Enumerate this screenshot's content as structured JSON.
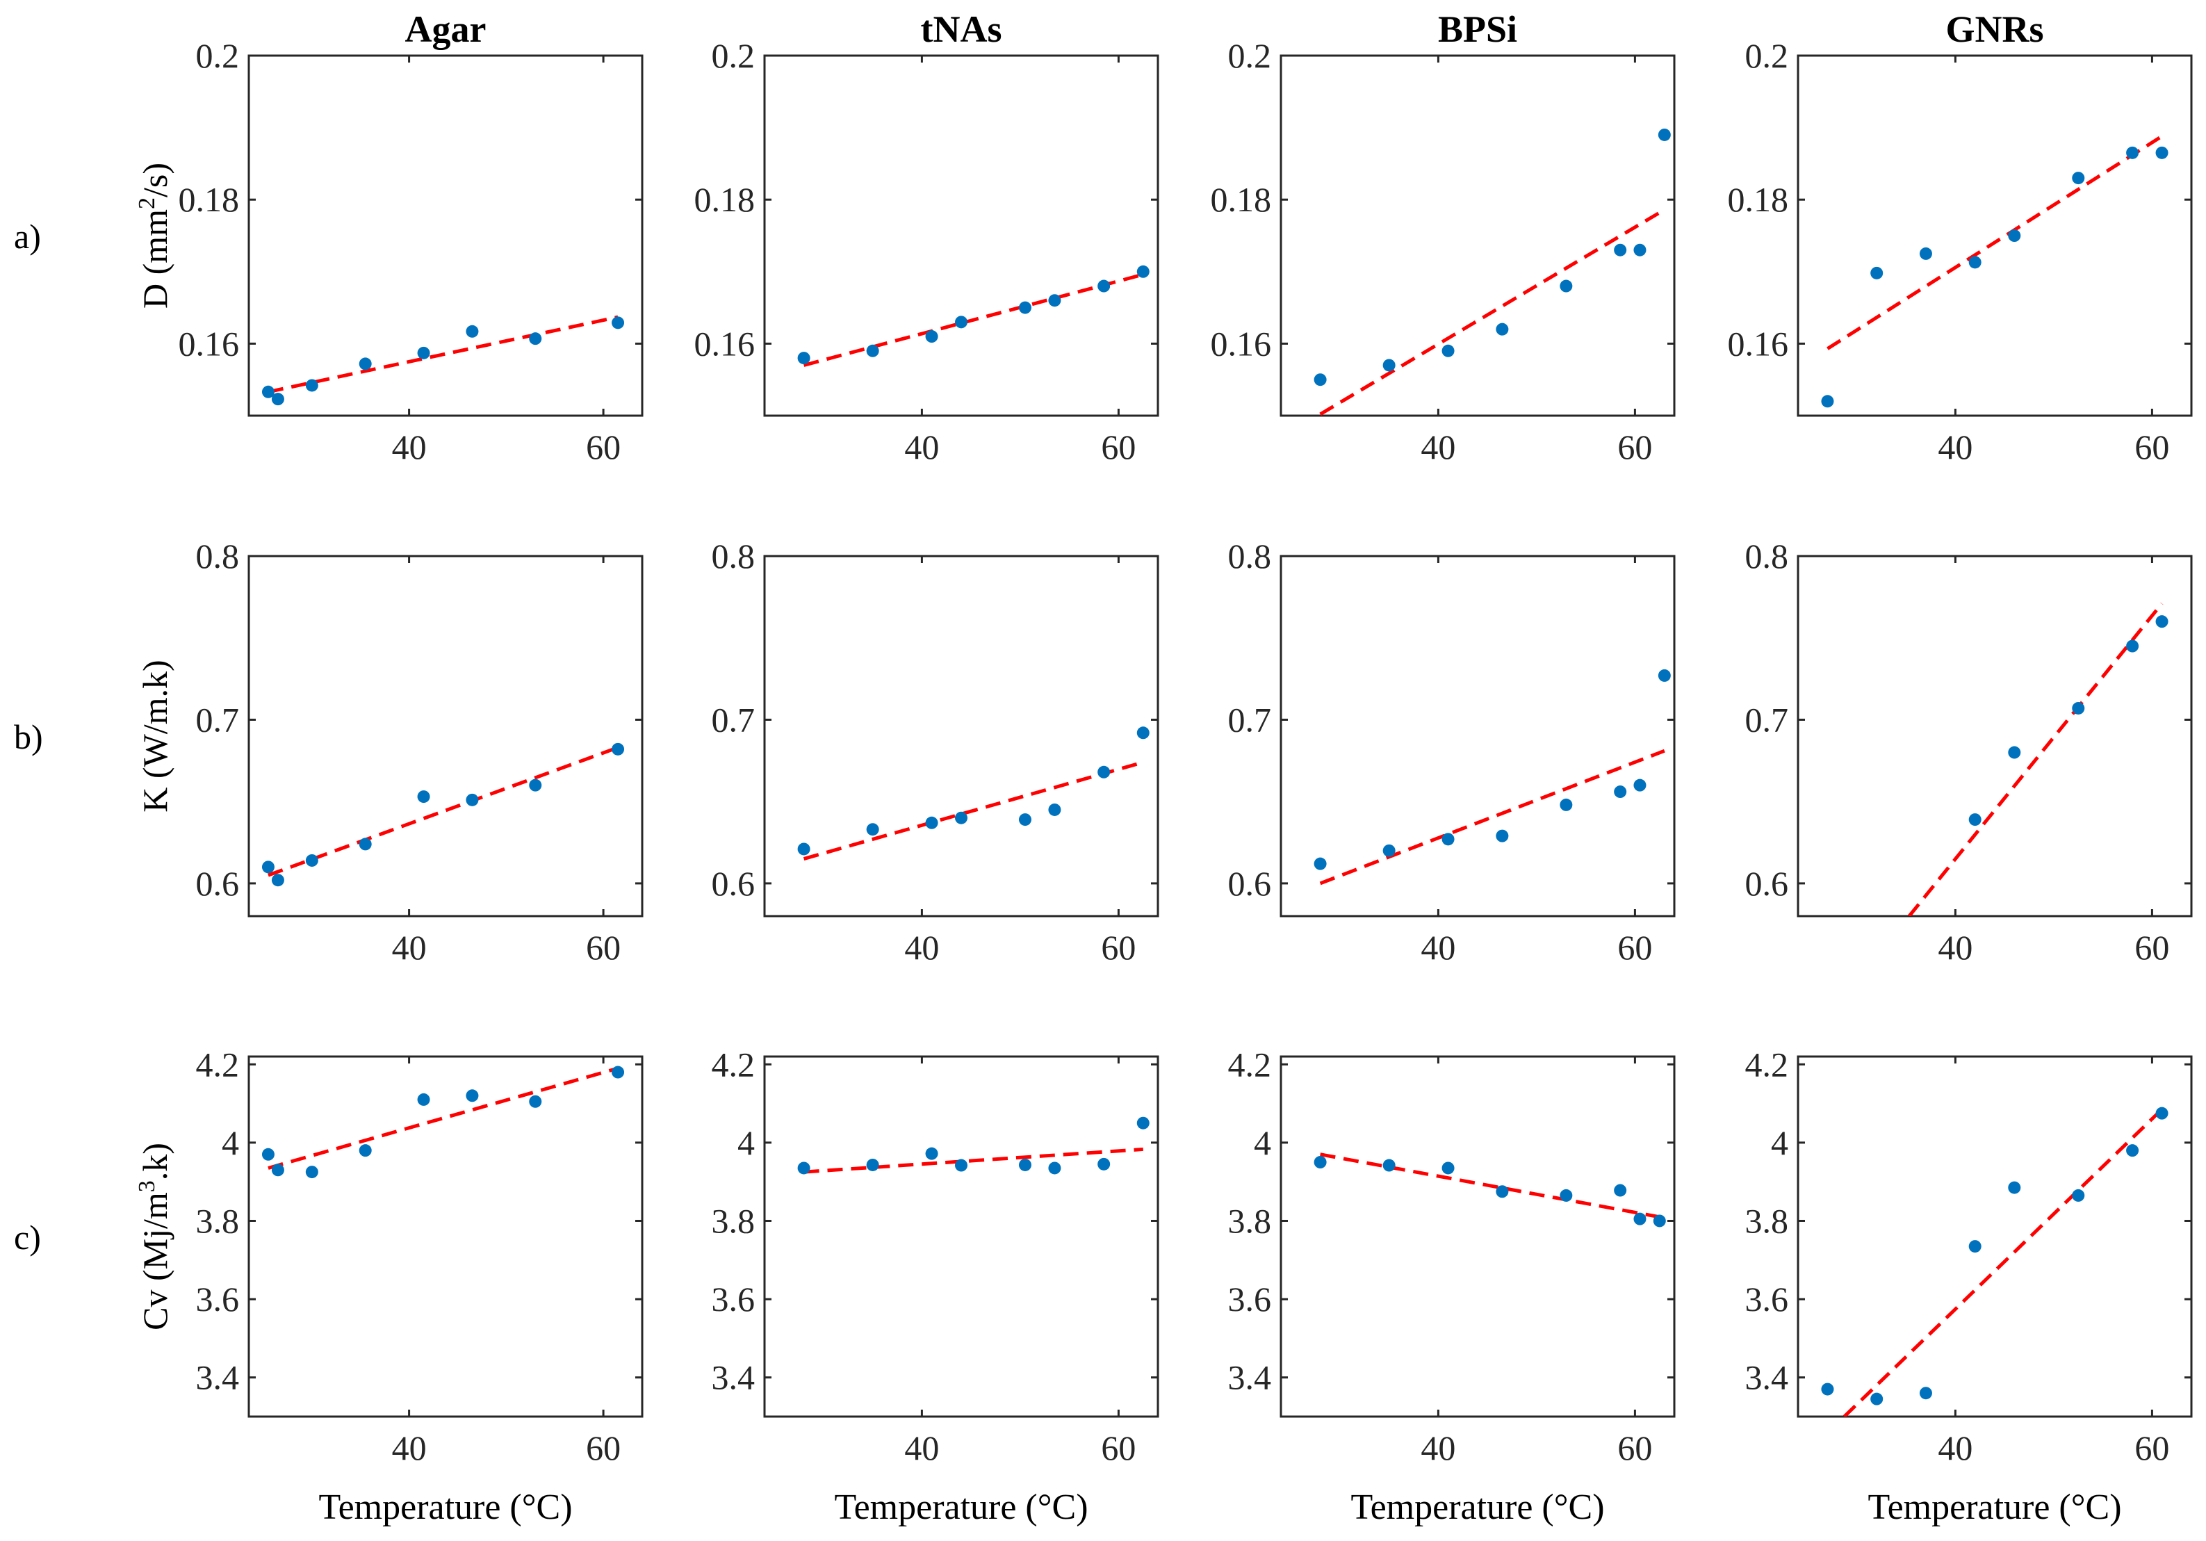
{
  "colors": {
    "marker": "#0072BD",
    "fit": "#FF0000",
    "axis": "#262626"
  },
  "columns": [
    "Agar",
    "tNAs",
    "BPSi",
    "GNRs"
  ],
  "rows": [
    {
      "label": "a)",
      "ylabel_parts": [
        "D (mm",
        "2",
        "/s)"
      ],
      "ylim": [
        0.15,
        0.2
      ],
      "yticks": [
        0.16,
        0.18,
        0.2
      ],
      "yticklabels": [
        "0.16",
        "0.18",
        "0.2"
      ]
    },
    {
      "label": "b)",
      "ylabel_parts": [
        "K (W/m.k)"
      ],
      "ylim": [
        0.58,
        0.8
      ],
      "yticks": [
        0.6,
        0.7,
        0.8
      ],
      "yticklabels": [
        "0.6",
        "0.7",
        "0.8"
      ]
    },
    {
      "label": "c)",
      "ylabel_parts": [
        "Cv (Mj/m",
        "3",
        ".k)"
      ],
      "ylim": [
        3.3,
        4.22
      ],
      "yticks": [
        3.4,
        3.6,
        3.8,
        4.0,
        4.2
      ],
      "yticklabels": [
        "3.4",
        "3.6",
        "3.8",
        "4",
        "4.2"
      ]
    }
  ],
  "xlabel": "Temperature (°C)",
  "xticks": [
    40,
    60
  ],
  "xticklabels": [
    "40",
    "60"
  ],
  "chart_data": [
    {
      "type": "scatter",
      "panel": "a)",
      "title": "Agar",
      "xlabel": "",
      "ylabel": "D (mm2/s)",
      "xlim": [
        23.5,
        64
      ],
      "ylim": [
        0.15,
        0.2
      ],
      "x": [
        25.5,
        26.5,
        30,
        35.5,
        41.5,
        46.5,
        53,
        61.5
      ],
      "y": [
        0.1533,
        0.1523,
        0.1542,
        0.1572,
        0.1587,
        0.1617,
        0.1607,
        0.1629
      ],
      "fit": {
        "x": [
          25.5,
          61.5
        ],
        "y": [
          0.1533,
          0.1637
        ]
      }
    },
    {
      "type": "scatter",
      "panel": "a)",
      "title": "tNAs",
      "xlabel": "",
      "ylabel": "",
      "xlim": [
        24,
        64
      ],
      "ylim": [
        0.15,
        0.2
      ],
      "x": [
        28,
        35,
        41,
        44,
        50.5,
        53.5,
        58.5,
        62.5
      ],
      "y": [
        0.158,
        0.159,
        0.161,
        0.163,
        0.165,
        0.166,
        0.168,
        0.17
      ],
      "fit": {
        "x": [
          28,
          62.5
        ],
        "y": [
          0.157,
          0.1696
        ]
      }
    },
    {
      "type": "scatter",
      "panel": "a)",
      "title": "BPSi",
      "xlabel": "",
      "ylabel": "",
      "xlim": [
        24,
        64
      ],
      "ylim": [
        0.15,
        0.2
      ],
      "x": [
        28,
        35,
        41,
        46.5,
        53,
        58.5,
        60.5,
        63
      ],
      "y": [
        0.155,
        0.157,
        0.159,
        0.162,
        0.168,
        0.173,
        0.173,
        0.189
      ],
      "fit": {
        "x": [
          28,
          63
        ],
        "y": [
          0.1502,
          0.1786
        ]
      }
    },
    {
      "type": "scatter",
      "panel": "a)",
      "title": "GNRs",
      "xlabel": "",
      "ylabel": "",
      "xlim": [
        24,
        64
      ],
      "ylim": [
        0.15,
        0.2
      ],
      "x": [
        27,
        32,
        37,
        42,
        46,
        52.5,
        58,
        61
      ],
      "y": [
        0.152,
        0.1698,
        0.1725,
        0.1713,
        0.175,
        0.183,
        0.1865,
        0.1865
      ],
      "fit": {
        "x": [
          27,
          61
        ],
        "y": [
          0.1593,
          0.1888
        ]
      }
    },
    {
      "type": "scatter",
      "panel": "b)",
      "title": "Agar",
      "xlabel": "",
      "ylabel": "K (W/m.k)",
      "xlim": [
        23.5,
        64
      ],
      "ylim": [
        0.58,
        0.8
      ],
      "x": [
        25.5,
        26.5,
        30,
        35.5,
        41.5,
        46.5,
        53,
        61.5
      ],
      "y": [
        0.61,
        0.602,
        0.614,
        0.624,
        0.653,
        0.651,
        0.66,
        0.682
      ],
      "fit": {
        "x": [
          25.5,
          61.5
        ],
        "y": [
          0.605,
          0.683
        ]
      }
    },
    {
      "type": "scatter",
      "panel": "b)",
      "title": "tNAs",
      "xlabel": "",
      "ylabel": "",
      "xlim": [
        24,
        64
      ],
      "ylim": [
        0.58,
        0.8
      ],
      "x": [
        28,
        35,
        41,
        44,
        50.5,
        53.5,
        58.5,
        62.5
      ],
      "y": [
        0.621,
        0.633,
        0.637,
        0.64,
        0.639,
        0.645,
        0.668,
        0.692
      ],
      "fit": {
        "x": [
          28,
          62.5
        ],
        "y": [
          0.615,
          0.674
        ]
      }
    },
    {
      "type": "scatter",
      "panel": "b)",
      "title": "BPSi",
      "xlabel": "",
      "ylabel": "",
      "xlim": [
        24,
        64
      ],
      "ylim": [
        0.58,
        0.8
      ],
      "x": [
        28,
        35,
        41,
        46.5,
        53,
        58.5,
        60.5,
        63
      ],
      "y": [
        0.612,
        0.62,
        0.627,
        0.629,
        0.648,
        0.656,
        0.66,
        0.727
      ],
      "fit": {
        "x": [
          28,
          63
        ],
        "y": [
          0.6,
          0.681
        ]
      }
    },
    {
      "type": "scatter",
      "panel": "b)",
      "title": "GNRs",
      "xlabel": "",
      "ylabel": "",
      "xlim": [
        24,
        64
      ],
      "ylim": [
        0.58,
        0.8
      ],
      "x": [
        42,
        46,
        52.5,
        58,
        61
      ],
      "y": [
        0.639,
        0.68,
        0.707,
        0.745,
        0.76
      ],
      "fit": {
        "x": [
          35.3,
          61
        ],
        "y": [
          0.58,
          0.771
        ]
      }
    },
    {
      "type": "scatter",
      "panel": "c)",
      "title": "Agar",
      "xlabel": "Temperature (°C)",
      "ylabel": "Cv (Mj/m3.k)",
      "xlim": [
        23.5,
        64
      ],
      "ylim": [
        3.3,
        4.22
      ],
      "x": [
        25.5,
        26.5,
        30,
        35.5,
        41.5,
        46.5,
        53,
        61.5
      ],
      "y": [
        3.97,
        3.93,
        3.925,
        3.98,
        4.11,
        4.12,
        4.105,
        4.18
      ],
      "fit": {
        "x": [
          25.5,
          61.5
        ],
        "y": [
          3.935,
          4.19
        ]
      }
    },
    {
      "type": "scatter",
      "panel": "c)",
      "title": "tNAs",
      "xlabel": "Temperature (°C)",
      "ylabel": "",
      "xlim": [
        24,
        64
      ],
      "ylim": [
        3.3,
        4.22
      ],
      "x": [
        28,
        35,
        41,
        44,
        50.5,
        53.5,
        58.5,
        62.5
      ],
      "y": [
        3.935,
        3.943,
        3.972,
        3.942,
        3.943,
        3.935,
        3.945,
        4.05
      ],
      "fit": {
        "x": [
          28,
          62.5
        ],
        "y": [
          3.925,
          3.983
        ]
      }
    },
    {
      "type": "scatter",
      "panel": "c)",
      "title": "BPSi",
      "xlabel": "Temperature (°C)",
      "ylabel": "",
      "xlim": [
        24,
        64
      ],
      "ylim": [
        3.3,
        4.22
      ],
      "x": [
        28,
        35,
        41,
        46.5,
        53,
        58.5,
        60.5,
        62.5
      ],
      "y": [
        3.95,
        3.942,
        3.935,
        3.875,
        3.865,
        3.878,
        3.805,
        3.8
      ],
      "fit": {
        "x": [
          28,
          62.5
        ],
        "y": [
          3.97,
          3.81
        ]
      }
    },
    {
      "type": "scatter",
      "panel": "c)",
      "title": "GNRs",
      "xlabel": "Temperature (°C)",
      "ylabel": "",
      "xlim": [
        24,
        64
      ],
      "ylim": [
        3.3,
        4.22
      ],
      "x": [
        27,
        32,
        37,
        42,
        46,
        52.5,
        58,
        61
      ],
      "y": [
        3.37,
        3.345,
        3.36,
        3.735,
        3.885,
        3.865,
        3.98,
        4.075
      ],
      "fit": {
        "x": [
          28.7,
          61
        ],
        "y": [
          3.3,
          4.085
        ]
      }
    }
  ]
}
